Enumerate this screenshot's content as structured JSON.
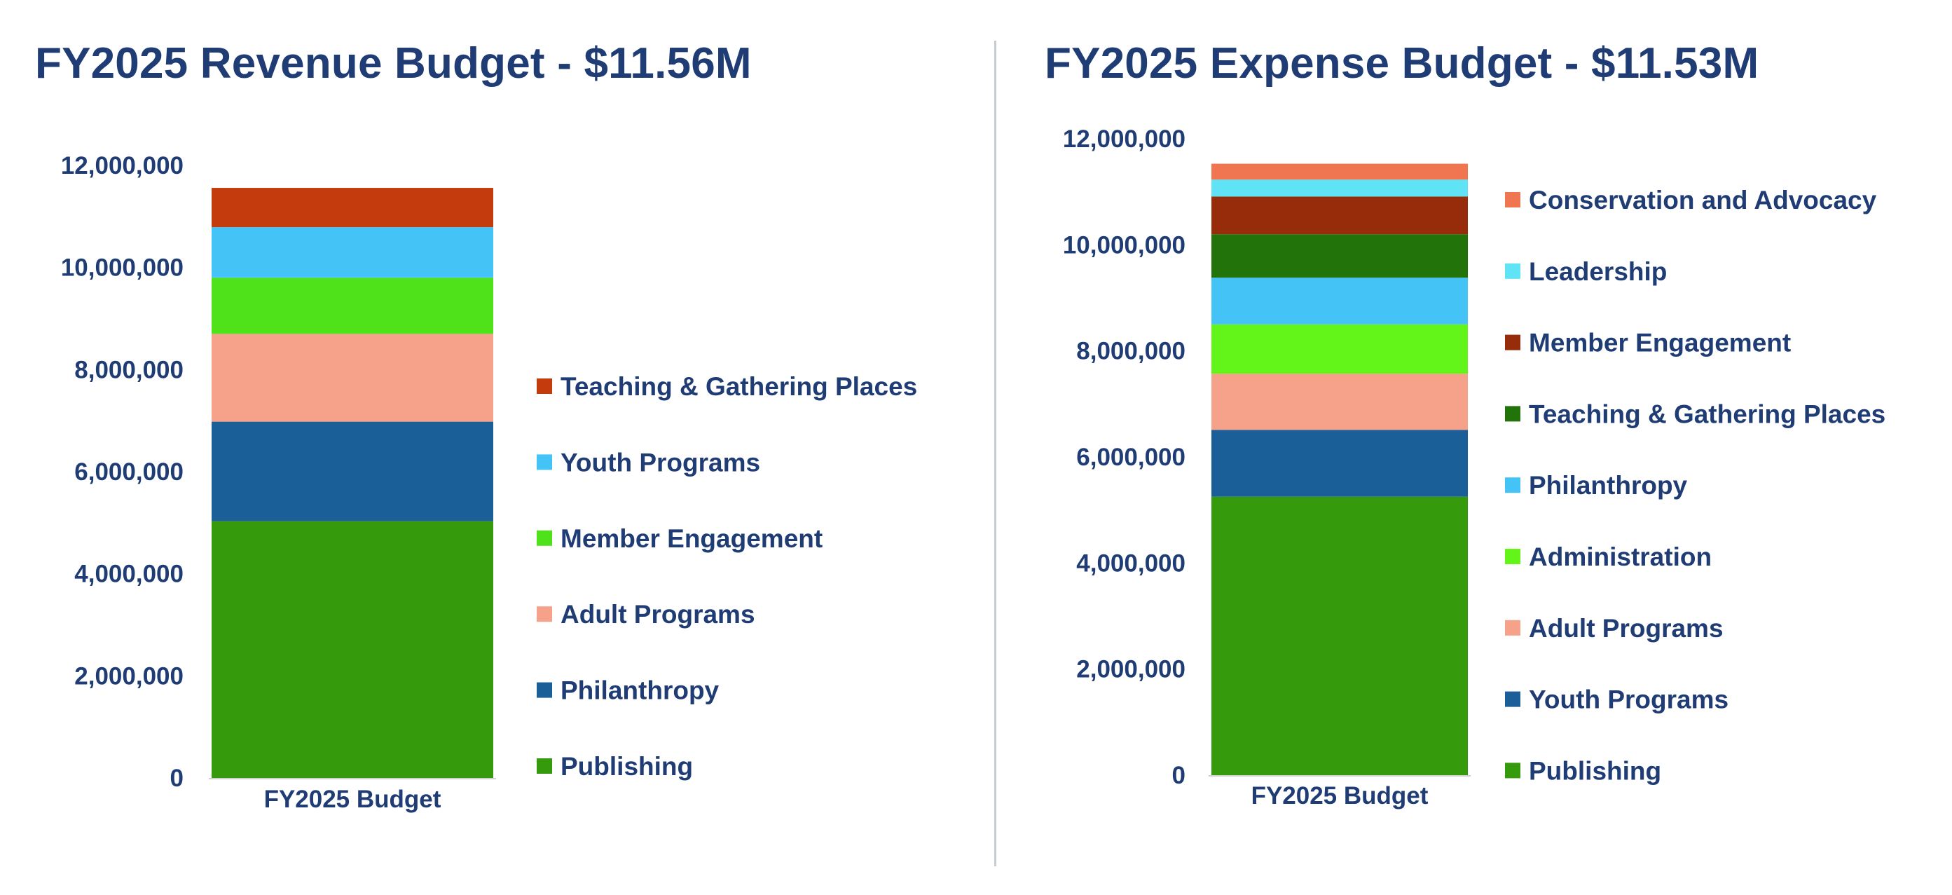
{
  "chart_data": [
    {
      "type": "bar",
      "stacked": true,
      "title": "FY2025 Revenue Budget - $11.56M",
      "categories": [
        "FY2025 Budget"
      ],
      "ylim": [
        0,
        12000000
      ],
      "yticks": [
        "0",
        "2,000,000",
        "4,000,000",
        "6,000,000",
        "8,000,000",
        "10,000,000",
        "12,000,000"
      ],
      "ytick_values": [
        0,
        2000000,
        4000000,
        6000000,
        8000000,
        10000000,
        12000000
      ],
      "grid": false,
      "legend_position": "right",
      "series": [
        {
          "name": "Publishing",
          "values": [
            5030000
          ],
          "color": "#359a0c"
        },
        {
          "name": "Philanthropy",
          "values": [
            1950000
          ],
          "color": "#1b5f98"
        },
        {
          "name": "Adult Programs",
          "values": [
            1720000
          ],
          "color": "#f6a28a"
        },
        {
          "name": "Member Engagement",
          "values": [
            1100000
          ],
          "color": "#4fe11a"
        },
        {
          "name": "Youth Programs",
          "values": [
            990000
          ],
          "color": "#44c4f6"
        },
        {
          "name": "Teaching & Gathering Places",
          "values": [
            770000
          ],
          "color": "#c43c0e"
        }
      ]
    },
    {
      "type": "bar",
      "stacked": true,
      "title": "FY2025 Expense Budget - $11.53M",
      "categories": [
        "FY2025 Budget"
      ],
      "ylim": [
        0,
        12000000
      ],
      "yticks": [
        "0",
        "2,000,000",
        "4,000,000",
        "6,000,000",
        "8,000,000",
        "10,000,000",
        "12,000,000"
      ],
      "ytick_values": [
        0,
        2000000,
        4000000,
        6000000,
        8000000,
        10000000,
        12000000
      ],
      "grid": false,
      "legend_position": "right",
      "series": [
        {
          "name": "Publishing",
          "values": [
            5250000
          ],
          "color": "#359a0c"
        },
        {
          "name": "Youth Programs",
          "values": [
            1260000
          ],
          "color": "#1b5f98"
        },
        {
          "name": "Adult Programs",
          "values": [
            1060000
          ],
          "color": "#f6a28a"
        },
        {
          "name": "Administration",
          "values": [
            930000
          ],
          "color": "#63f51a"
        },
        {
          "name": "Philanthropy",
          "values": [
            880000
          ],
          "color": "#44c4f6"
        },
        {
          "name": "Teaching & Gathering Places",
          "values": [
            820000
          ],
          "color": "#227309"
        },
        {
          "name": "Member Engagement",
          "values": [
            710000
          ],
          "color": "#962c09"
        },
        {
          "name": "Leadership",
          "values": [
            320000
          ],
          "color": "#5fe3f5"
        },
        {
          "name": "Conservation and Advocacy",
          "values": [
            300000
          ],
          "color": "#ef7650"
        }
      ]
    }
  ]
}
